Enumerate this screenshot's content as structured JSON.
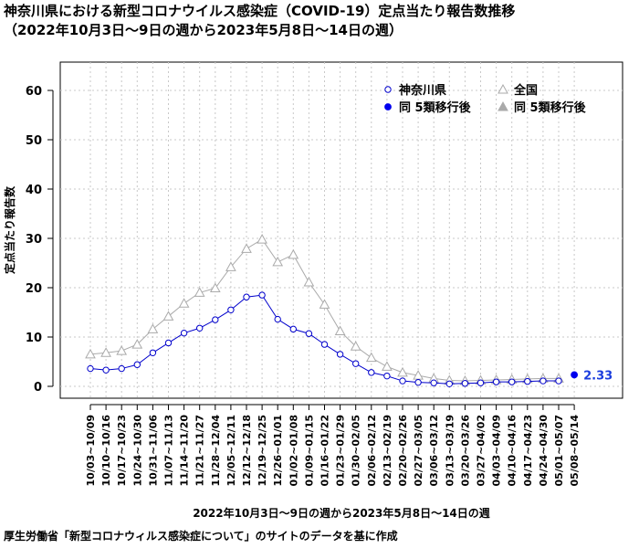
{
  "title": "神奈川県における新型コロナウイルス感染症（COVID-19）定点当たり報告数推移",
  "subtitle": "（2022年10月3日〜9日の週から2023年5月8日〜14日の週）",
  "source": "厚生労働省「新型コロナウィルス感染症について」のサイトのデータを基に作成",
  "chart_data": {
    "type": "line",
    "xlabel": "2022年10月3日〜9日の週から2023年5月8日〜14日の週",
    "ylabel": "定点当たり報告数",
    "ylim": [
      0,
      65
    ],
    "yticks": [
      0,
      10,
      20,
      30,
      40,
      50,
      60
    ],
    "grid": true,
    "legend_position": "top-right",
    "categories": [
      "10/03~10/09",
      "10/10~10/16",
      "10/17~10/23",
      "10/24~10/30",
      "10/31~11/06",
      "11/07~11/13",
      "11/14~11/20",
      "11/21~11/27",
      "11/28~12/04",
      "12/05~12/11",
      "12/12~12/18",
      "12/19~12/25",
      "12/26~01/01",
      "01/02~01/08",
      "01/09~01/15",
      "01/16~01/22",
      "01/23~01/29",
      "01/30~02/05",
      "02/06~02/12",
      "02/13~02/19",
      "02/20~02/26",
      "02/27~03/05",
      "03/06~03/12",
      "03/13~03/19",
      "03/20~03/26",
      "03/27~04/02",
      "04/03~04/09",
      "04/10~04/16",
      "04/17~04/23",
      "04/24~04/30",
      "05/01~05/07",
      "05/08~05/14"
    ],
    "series": [
      {
        "name": "神奈川県",
        "marker": "open-circle",
        "color": "#0000cc",
        "values": [
          3.6,
          3.3,
          3.6,
          4.4,
          6.8,
          8.8,
          10.8,
          11.8,
          13.5,
          15.5,
          18.1,
          18.5,
          13.6,
          11.6,
          10.7,
          8.5,
          6.5,
          4.6,
          2.8,
          2.1,
          1.1,
          0.8,
          0.7,
          0.5,
          0.6,
          0.7,
          0.9,
          0.9,
          1.0,
          1.1,
          1.1,
          null
        ]
      },
      {
        "name": "全国",
        "marker": "open-triangle",
        "color": "#aaaaaa",
        "values": [
          6.5,
          6.8,
          7.2,
          8.5,
          11.6,
          14.2,
          16.8,
          19.0,
          19.9,
          24.2,
          27.9,
          29.8,
          25.2,
          26.7,
          21.1,
          16.6,
          11.2,
          8.1,
          5.8,
          4.0,
          2.8,
          2.2,
          1.6,
          1.2,
          1.1,
          1.2,
          1.3,
          1.4,
          1.5,
          1.6,
          1.6,
          null
        ]
      },
      {
        "name": "同 5類移行後",
        "marker": "filled-circle",
        "color": "#0000ee",
        "values": [
          null,
          null,
          null,
          null,
          null,
          null,
          null,
          null,
          null,
          null,
          null,
          null,
          null,
          null,
          null,
          null,
          null,
          null,
          null,
          null,
          null,
          null,
          null,
          null,
          null,
          null,
          null,
          null,
          null,
          null,
          null,
          2.33
        ]
      },
      {
        "name": "同 5類移行後",
        "marker": "filled-triangle",
        "color": "#aaaaaa",
        "values": [
          null,
          null,
          null,
          null,
          null,
          null,
          null,
          null,
          null,
          null,
          null,
          null,
          null,
          null,
          null,
          null,
          null,
          null,
          null,
          null,
          null,
          null,
          null,
          null,
          null,
          null,
          null,
          null,
          null,
          null,
          null,
          null
        ]
      }
    ],
    "annotations": [
      {
        "text": "2.33",
        "category": "05/08~05/14",
        "color": "#1a3cdd"
      }
    ]
  }
}
